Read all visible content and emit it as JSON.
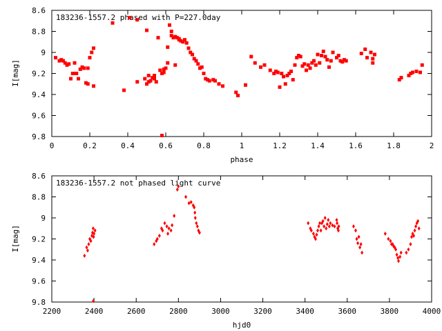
{
  "colors": {
    "points": "#ff0000",
    "frame": "#000000",
    "background": "#ffffff"
  },
  "chart_data": [
    {
      "type": "scatter",
      "title": "183236-1557.2 phased with P=227.0day",
      "xlabel": "phase",
      "ylabel": "I[mag]",
      "xlim": [
        0,
        2
      ],
      "ylim": [
        8.6,
        9.8
      ],
      "y_inverted": true,
      "grid": false,
      "xticks": [
        0,
        0.2,
        0.4,
        0.6,
        0.8,
        1,
        1.2,
        1.4,
        1.6,
        1.8,
        2
      ],
      "xtick_labels": [
        "0",
        "0.2",
        "0.4",
        "0.6",
        "0.8",
        "1",
        "1.2",
        "1.4",
        "1.6",
        "1.8",
        "2"
      ],
      "yticks": [
        8.6,
        8.8,
        9,
        9.2,
        9.4,
        9.6,
        9.8
      ],
      "ytick_labels": [
        "8.6",
        "8.8",
        "9",
        "9.2",
        "9.4",
        "9.6",
        "9.8"
      ],
      "marker": "filled-square",
      "series": [
        {
          "points": [
            [
              0.02,
              9.05
            ],
            [
              0.04,
              9.08
            ],
            [
              0.05,
              9.07
            ],
            [
              0.06,
              9.08
            ],
            [
              0.07,
              9.1
            ],
            [
              0.08,
              9.12
            ],
            [
              0.09,
              9.11
            ],
            [
              0.1,
              9.25
            ],
            [
              0.11,
              9.2
            ],
            [
              0.12,
              9.2
            ],
            [
              0.12,
              9.1
            ],
            [
              0.13,
              9.2
            ],
            [
              0.14,
              9.25
            ],
            [
              0.15,
              9.16
            ],
            [
              0.16,
              9.14
            ],
            [
              0.17,
              9.15
            ],
            [
              0.18,
              9.29
            ],
            [
              0.19,
              9.3
            ],
            [
              0.19,
              9.15
            ],
            [
              0.2,
              9.05
            ],
            [
              0.21,
              9.0
            ],
            [
              0.22,
              8.96
            ],
            [
              0.22,
              9.32
            ],
            [
              0.32,
              8.72
            ],
            [
              0.38,
              9.36
            ],
            [
              0.41,
              8.67
            ],
            [
              0.45,
              8.69
            ],
            [
              0.45,
              9.28
            ],
            [
              0.49,
              9.25
            ],
            [
              0.5,
              9.3
            ],
            [
              0.5,
              8.79
            ],
            [
              0.51,
              9.28
            ],
            [
              0.51,
              9.22
            ],
            [
              0.52,
              9.27
            ],
            [
              0.53,
              9.24
            ],
            [
              0.54,
              9.22
            ],
            [
              0.54,
              9.25
            ],
            [
              0.55,
              9.28
            ],
            [
              0.56,
              8.86
            ],
            [
              0.57,
              9.17
            ],
            [
              0.58,
              9.2
            ],
            [
              0.58,
              9.79
            ],
            [
              0.59,
              9.16
            ],
            [
              0.59,
              9.19
            ],
            [
              0.6,
              9.15
            ],
            [
              0.61,
              9.1
            ],
            [
              0.61,
              8.95
            ],
            [
              0.62,
              8.74
            ],
            [
              0.63,
              8.8
            ],
            [
              0.63,
              8.84
            ],
            [
              0.64,
              8.86
            ],
            [
              0.65,
              9.12
            ],
            [
              0.65,
              8.85
            ],
            [
              0.66,
              8.86
            ],
            [
              0.67,
              8.87
            ],
            [
              0.67,
              8.88
            ],
            [
              0.68,
              8.89
            ],
            [
              0.69,
              8.9
            ],
            [
              0.7,
              8.88
            ],
            [
              0.71,
              8.91
            ],
            [
              0.72,
              8.96
            ],
            [
              0.73,
              9.0
            ],
            [
              0.74,
              9.02
            ],
            [
              0.75,
              9.06
            ],
            [
              0.76,
              9.08
            ],
            [
              0.77,
              9.11
            ],
            [
              0.78,
              9.15
            ],
            [
              0.79,
              9.14
            ],
            [
              0.8,
              9.2
            ],
            [
              0.81,
              9.25
            ],
            [
              0.82,
              9.26
            ],
            [
              0.83,
              9.27
            ],
            [
              0.85,
              9.26
            ],
            [
              0.86,
              9.27
            ],
            [
              0.88,
              9.3
            ],
            [
              0.9,
              9.32
            ],
            [
              0.97,
              9.38
            ],
            [
              0.98,
              9.41
            ],
            [
              1.02,
              9.31
            ],
            [
              1.05,
              9.04
            ],
            [
              1.07,
              9.1
            ],
            [
              1.1,
              9.14
            ],
            [
              1.12,
              9.12
            ],
            [
              1.15,
              9.17
            ],
            [
              1.17,
              9.2
            ],
            [
              1.18,
              9.18
            ],
            [
              1.19,
              9.19
            ],
            [
              1.2,
              9.33
            ],
            [
              1.21,
              9.2
            ],
            [
              1.22,
              9.23
            ],
            [
              1.23,
              9.3
            ],
            [
              1.24,
              9.22
            ],
            [
              1.25,
              9.2
            ],
            [
              1.26,
              9.18
            ],
            [
              1.27,
              9.26
            ],
            [
              1.28,
              9.12
            ],
            [
              1.29,
              9.05
            ],
            [
              1.3,
              9.03
            ],
            [
              1.31,
              9.04
            ],
            [
              1.32,
              9.13
            ],
            [
              1.33,
              9.11
            ],
            [
              1.34,
              9.17
            ],
            [
              1.35,
              9.12
            ],
            [
              1.36,
              9.15
            ],
            [
              1.37,
              9.1
            ],
            [
              1.38,
              9.08
            ],
            [
              1.39,
              9.12
            ],
            [
              1.4,
              9.02
            ],
            [
              1.41,
              9.1
            ],
            [
              1.42,
              9.03
            ],
            [
              1.43,
              8.99
            ],
            [
              1.44,
              9.04
            ],
            [
              1.45,
              9.07
            ],
            [
              1.46,
              9.14
            ],
            [
              1.47,
              9.08
            ],
            [
              1.48,
              9.0
            ],
            [
              1.5,
              9.05
            ],
            [
              1.51,
              9.03
            ],
            [
              1.52,
              9.08
            ],
            [
              1.53,
              9.09
            ],
            [
              1.54,
              9.07
            ],
            [
              1.55,
              9.08
            ],
            [
              1.63,
              9.01
            ],
            [
              1.65,
              8.97
            ],
            [
              1.66,
              9.05
            ],
            [
              1.68,
              9.0
            ],
            [
              1.69,
              9.06
            ],
            [
              1.69,
              9.1
            ],
            [
              1.7,
              9.02
            ],
            [
              1.83,
              9.26
            ],
            [
              1.84,
              9.24
            ],
            [
              1.88,
              9.22
            ],
            [
              1.89,
              9.2
            ],
            [
              1.9,
              9.19
            ],
            [
              1.92,
              9.18
            ],
            [
              1.94,
              9.19
            ],
            [
              1.95,
              9.12
            ]
          ]
        }
      ]
    },
    {
      "type": "scatter",
      "title": "183236-1557.2 not phased light curve",
      "xlabel": "hjd0",
      "ylabel": "I[mag]",
      "xlim": [
        2200,
        4000
      ],
      "ylim": [
        8.6,
        9.8
      ],
      "y_inverted": true,
      "grid": false,
      "xticks": [
        2200,
        2400,
        2600,
        2800,
        3000,
        3200,
        3400,
        3600,
        3800,
        4000
      ],
      "xtick_labels": [
        "2200",
        "2400",
        "2600",
        "2800",
        "3000",
        "3200",
        "3400",
        "3600",
        "3800",
        "4000"
      ],
      "yticks": [
        8.6,
        8.8,
        9,
        9.2,
        9.4,
        9.6,
        9.8
      ],
      "ytick_labels": [
        "8.6",
        "8.8",
        "9",
        "9.2",
        "9.4",
        "9.6",
        "9.8"
      ],
      "marker": "diamond",
      "series": [
        {
          "points": [
            [
              2355,
              9.36
            ],
            [
              2365,
              9.28
            ],
            [
              2370,
              9.31
            ],
            [
              2375,
              9.25
            ],
            [
              2380,
              9.2
            ],
            [
              2385,
              9.22
            ],
            [
              2390,
              9.17
            ],
            [
              2393,
              9.14
            ],
            [
              2396,
              9.1
            ],
            [
              2398,
              9.18
            ],
            [
              2400,
              9.15
            ],
            [
              2405,
              9.12
            ],
            [
              2397,
              9.79
            ],
            [
              2685,
              9.25
            ],
            [
              2695,
              9.22
            ],
            [
              2700,
              9.2
            ],
            [
              2710,
              9.17
            ],
            [
              2720,
              9.1
            ],
            [
              2725,
              9.12
            ],
            [
              2735,
              9.05
            ],
            [
              2745,
              9.08
            ],
            [
              2750,
              9.15
            ],
            [
              2755,
              9.1
            ],
            [
              2765,
              9.12
            ],
            [
              2770,
              9.07
            ],
            [
              2780,
              8.98
            ],
            [
              2795,
              8.73
            ],
            [
              2800,
              8.7
            ],
            [
              2835,
              8.8
            ],
            [
              2850,
              8.86
            ],
            [
              2860,
              8.85
            ],
            [
              2870,
              8.88
            ],
            [
              2875,
              8.9
            ],
            [
              2878,
              8.95
            ],
            [
              2880,
              9.0
            ],
            [
              2885,
              9.05
            ],
            [
              2890,
              9.08
            ],
            [
              2895,
              9.12
            ],
            [
              2900,
              9.14
            ],
            [
              3415,
              9.05
            ],
            [
              3425,
              9.1
            ],
            [
              3430,
              9.12
            ],
            [
              3440,
              9.15
            ],
            [
              3445,
              9.18
            ],
            [
              3450,
              9.2
            ],
            [
              3455,
              9.16
            ],
            [
              3460,
              9.12
            ],
            [
              3465,
              9.08
            ],
            [
              3470,
              9.05
            ],
            [
              3475,
              9.12
            ],
            [
              3480,
              9.05
            ],
            [
              3485,
              9.03
            ],
            [
              3490,
              9.08
            ],
            [
              3495,
              9.0
            ],
            [
              3500,
              9.1
            ],
            [
              3505,
              9.06
            ],
            [
              3510,
              9.02
            ],
            [
              3515,
              9.08
            ],
            [
              3520,
              9.05
            ],
            [
              3530,
              9.07
            ],
            [
              3540,
              9.08
            ],
            [
              3550,
              9.02
            ],
            [
              3552,
              9.05
            ],
            [
              3555,
              9.1
            ],
            [
              3558,
              9.12
            ],
            [
              3560,
              9.08
            ],
            [
              3630,
              9.08
            ],
            [
              3640,
              9.12
            ],
            [
              3645,
              9.2
            ],
            [
              3650,
              9.24
            ],
            [
              3655,
              9.18
            ],
            [
              3660,
              9.28
            ],
            [
              3665,
              9.25
            ],
            [
              3670,
              9.33
            ],
            [
              3780,
              9.15
            ],
            [
              3795,
              9.2
            ],
            [
              3805,
              9.22
            ],
            [
              3810,
              9.25
            ],
            [
              3815,
              9.25
            ],
            [
              3820,
              9.27
            ],
            [
              3825,
              9.28
            ],
            [
              3830,
              9.3
            ],
            [
              3835,
              9.35
            ],
            [
              3840,
              9.38
            ],
            [
              3843,
              9.41
            ],
            [
              3850,
              9.37
            ],
            [
              3855,
              9.33
            ],
            [
              3880,
              9.33
            ],
            [
              3890,
              9.3
            ],
            [
              3900,
              9.25
            ],
            [
              3905,
              9.18
            ],
            [
              3910,
              9.15
            ],
            [
              3915,
              9.17
            ],
            [
              3920,
              9.12
            ],
            [
              3925,
              9.08
            ],
            [
              3930,
              9.05
            ],
            [
              3935,
              9.03
            ],
            [
              3940,
              9.1
            ]
          ]
        }
      ]
    }
  ]
}
